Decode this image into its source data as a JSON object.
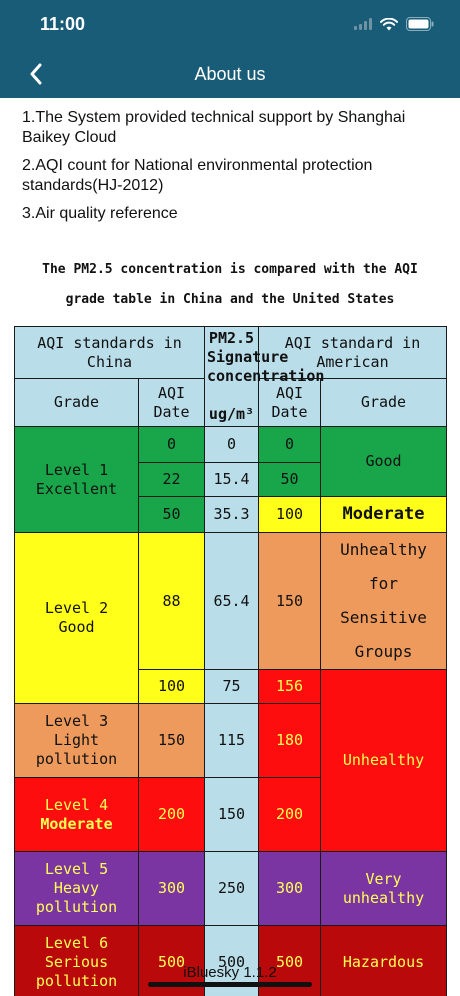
{
  "status_bar": {
    "time": "11:00",
    "icons": [
      "signal-icon",
      "wifi-icon",
      "battery-icon"
    ]
  },
  "nav": {
    "title": "About us",
    "back_icon": "chevron-left-icon"
  },
  "intro": {
    "line1": "1.The System provided technical support by Shanghai Baikey Cloud",
    "line2": "2.AQI count for National environmental protection standards(HJ-2012)",
    "line3": "3.Air quality reference"
  },
  "table": {
    "caption_line1": "The PM2.5 concentration is compared with the AQI",
    "caption_line2": "grade table in China and the United States",
    "header": {
      "china": "AQI standards in China",
      "pm_line1": "PM2.5",
      "pm_line2": "Signature",
      "pm_line3": "concentration",
      "american": "AQI standard in American",
      "grade_cn": "Grade",
      "aqi_date_cn": "AQI Date",
      "unit": "ug/m³",
      "aqi_date_us": "AQI Date",
      "grade_us": "Grade"
    },
    "rows": {
      "r1": {
        "cn_aqi": "0",
        "pm": "0",
        "us_aqi": "0"
      },
      "r2": {
        "cn_aqi": "22",
        "pm": "15.4",
        "us_aqi": "50"
      },
      "r3": {
        "cn_aqi": "50",
        "pm": "35.3",
        "us_aqi": "100"
      },
      "r4": {
        "cn_aqi": "88",
        "pm": "65.4",
        "us_aqi": "150"
      },
      "r5": {
        "cn_aqi": "100",
        "pm": "75",
        "us_aqi": "156"
      },
      "r6": {
        "cn_aqi": "150",
        "pm": "115",
        "us_aqi": "180"
      },
      "r7": {
        "cn_aqi": "200",
        "pm": "150",
        "us_aqi": "200"
      },
      "r8": {
        "cn_aqi": "300",
        "pm": "250",
        "us_aqi": "300"
      },
      "r9": {
        "cn_aqi": "500",
        "pm": "500",
        "us_aqi": "500"
      }
    },
    "china_grades": {
      "level1_a": "Level 1",
      "level1_b": "Excellent",
      "level2_a": "Level 2",
      "level2_b": "Good",
      "level3_a": "Level 3",
      "level3_b": "Light pollution",
      "level4_a": "Level 4",
      "level4_b": "Moderate",
      "level5_a": "Level 5",
      "level5_b": "Heavy pollution",
      "level6_a": "Level 6",
      "level6_b": "Serious pollution"
    },
    "us_grades": {
      "good": "Good",
      "moderate": "Moderate",
      "usg_a": "Unhealthy for",
      "usg_b": "Sensitive Groups",
      "unhealthy": "Unhealthy",
      "very_unhealthy": "Very unhealthy",
      "hazardous": "Hazardous"
    },
    "colors": {
      "header_blue": "#b9dde9",
      "green": "#19a64a",
      "yellow": "#ffff19",
      "orange": "#ee9a5c",
      "red": "#fd0d0d",
      "purple": "#7b35a2",
      "dark_red": "#b9090a"
    }
  },
  "footer": {
    "version": "iBluesky  1.1.2"
  }
}
